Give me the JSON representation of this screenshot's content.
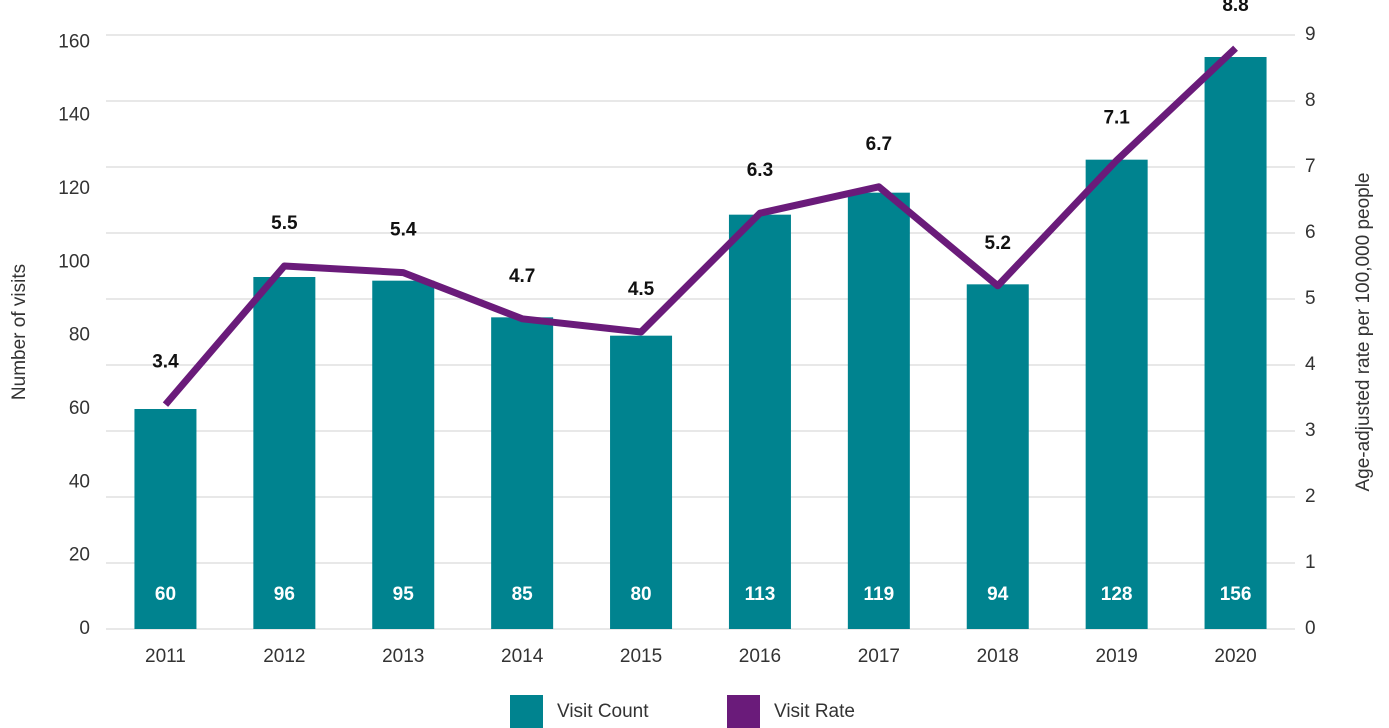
{
  "chart_data": {
    "type": "bar_line",
    "categories": [
      "2011",
      "2012",
      "2013",
      "2014",
      "2015",
      "2016",
      "2017",
      "2018",
      "2019",
      "2020"
    ],
    "series": [
      {
        "name": "Visit Count",
        "type": "bar",
        "color": "#00838f",
        "values": [
          60,
          96,
          95,
          85,
          80,
          113,
          119,
          94,
          128,
          156
        ]
      },
      {
        "name": "Visit Rate",
        "type": "line",
        "axis": "y2",
        "color": "#6a1b7a",
        "values": [
          3.4,
          5.5,
          5.4,
          4.7,
          4.5,
          6.3,
          6.7,
          5.2,
          7.1,
          8.8
        ]
      }
    ],
    "ylabel": "Number of visits",
    "y2label": "Age-adjusted rate per 100,000 people",
    "ylim": [
      0,
      162
    ],
    "yticks": [
      0,
      20,
      40,
      60,
      80,
      100,
      120,
      140,
      160
    ],
    "y2lim": [
      0,
      9
    ],
    "y2ticks": [
      0,
      1,
      2,
      3,
      4,
      5,
      6,
      7,
      8,
      9
    ],
    "grid": true,
    "legend": "bottom"
  }
}
